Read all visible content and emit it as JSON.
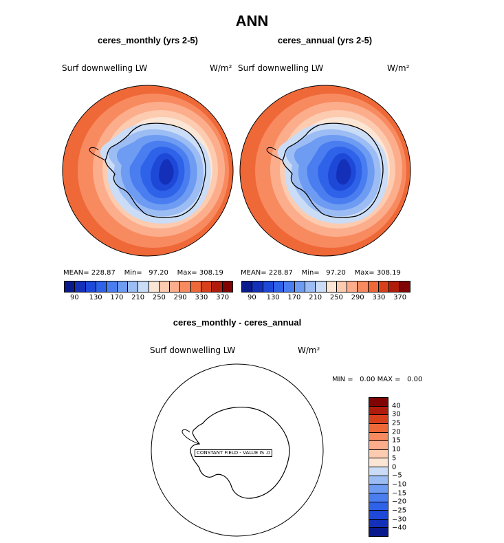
{
  "figure": {
    "title": "ANN"
  },
  "panels": [
    {
      "subtitle": "ceres_monthly (yrs 2-5)",
      "variable": "Surf downwelling LW",
      "units": "W/m²",
      "stats": {
        "mean_label": "MEAN=",
        "mean": "228.87",
        "min_label": "Min=",
        "min": "97.20",
        "max_label": "Max=",
        "max": "308.19"
      }
    },
    {
      "subtitle": "ceres_annual (yrs 2-5)",
      "variable": "Surf downwelling LW",
      "units": "W/m²",
      "stats": {
        "mean_label": "MEAN=",
        "mean": "228.87",
        "min_label": "Min=",
        "min": "97.20",
        "max_label": "Max=",
        "max": "308.19"
      }
    },
    {
      "subtitle": "ceres_monthly - ceres_annual",
      "variable": "Surf downwelling LW",
      "units": "W/m²",
      "stats": {
        "min_label": "MIN =",
        "min": "0.00",
        "max_label": "MAX =",
        "max": "0.00"
      },
      "constant_label": "CONSTANT FIELD - VALUE IS .0"
    }
  ],
  "chart_data": [
    {
      "type": "heatmap",
      "title": "ceres_monthly (yrs 2-5)",
      "projection": "south polar stereographic",
      "field": "Surf downwelling LW",
      "units": "W/m2",
      "mean": 228.87,
      "min": 97.2,
      "max": 308.19,
      "levels": [
        90,
        110,
        130,
        150,
        170,
        190,
        210,
        230,
        250,
        270,
        290,
        310,
        330,
        350,
        370
      ],
      "colorbar_ticks": [
        "90",
        "130",
        "170",
        "210",
        "250",
        "290",
        "330",
        "370"
      ],
      "colors": [
        "#0a1a8c",
        "#1430b8",
        "#1e48d8",
        "#2e62e8",
        "#4a7ef0",
        "#6e9cf2",
        "#9cbcf4",
        "#cadcf6",
        "#fbe6d6",
        "#fdcbb0",
        "#fcae8c",
        "#f88a60",
        "#ef6838",
        "#d8401c",
        "#b01c0c",
        "#800404"
      ]
    },
    {
      "type": "heatmap",
      "title": "ceres_annual (yrs 2-5)",
      "projection": "south polar stereographic",
      "field": "Surf downwelling LW",
      "units": "W/m2",
      "mean": 228.87,
      "min": 97.2,
      "max": 308.19,
      "levels": [
        90,
        110,
        130,
        150,
        170,
        190,
        210,
        230,
        250,
        270,
        290,
        310,
        330,
        350,
        370
      ],
      "colorbar_ticks": [
        "90",
        "130",
        "170",
        "210",
        "250",
        "290",
        "330",
        "370"
      ],
      "colors": [
        "#0a1a8c",
        "#1430b8",
        "#1e48d8",
        "#2e62e8",
        "#4a7ef0",
        "#6e9cf2",
        "#9cbcf4",
        "#cadcf6",
        "#fbe6d6",
        "#fdcbb0",
        "#fcae8c",
        "#f88a60",
        "#ef6838",
        "#d8401c",
        "#b01c0c",
        "#800404"
      ]
    },
    {
      "type": "heatmap",
      "title": "ceres_monthly - ceres_annual",
      "projection": "south polar stereographic",
      "field": "Surf downwelling LW",
      "units": "W/m2",
      "min": 0.0,
      "max": 0.0,
      "constant_value": 0.0,
      "colorbar_ticks": [
        "40",
        "30",
        "25",
        "20",
        "15",
        "10",
        "5",
        "0",
        "−5",
        "−10",
        "−15",
        "−20",
        "−25",
        "−30",
        "−40"
      ],
      "colors": [
        "#800404",
        "#b01c0c",
        "#d8401c",
        "#ef6838",
        "#f88a60",
        "#fcae8c",
        "#fdcbb0",
        "#fbe6d6",
        "#cadcf6",
        "#9cbcf4",
        "#6e9cf2",
        "#4a7ef0",
        "#2e62e8",
        "#1e48d8",
        "#1430b8",
        "#0a1a8c"
      ]
    }
  ]
}
